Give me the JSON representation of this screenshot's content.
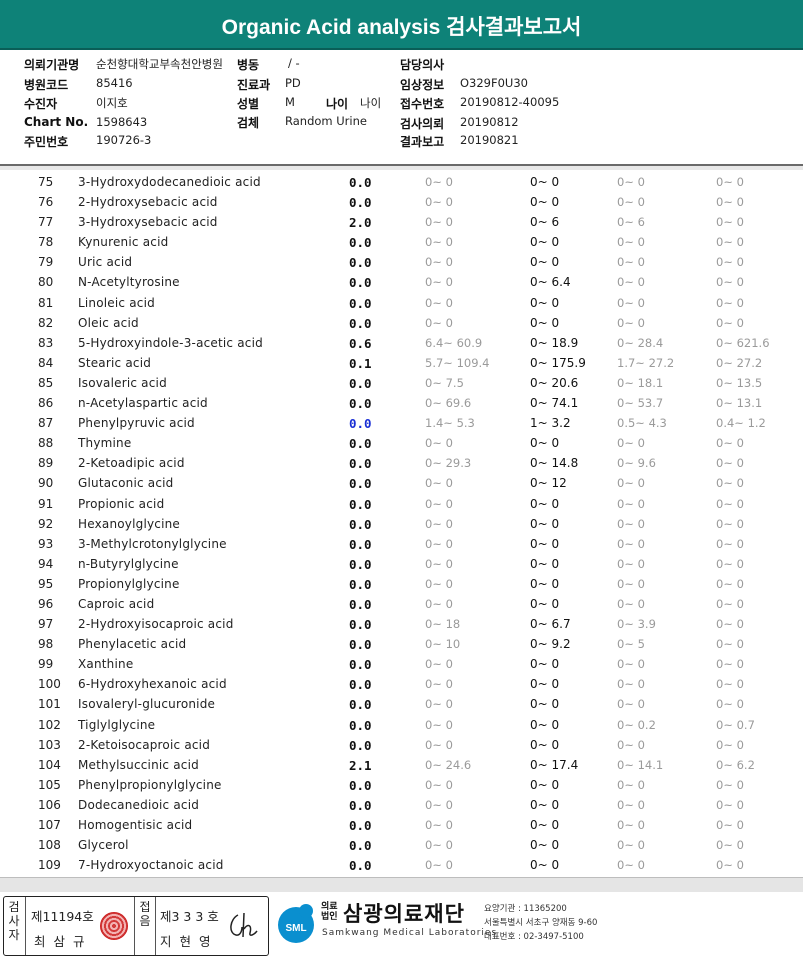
{
  "header": {
    "title": "Organic Acid analysis 검사결과보고서"
  },
  "info": {
    "requester_label": "의뢰기관명",
    "requester_value": "순천향대학교부속천안병원",
    "ward_label": "병동",
    "ward_value": "/ -",
    "doctor_label": "담당의사",
    "doctor_value": "",
    "hospital_code_label": "병원코드",
    "hospital_code_value": "85416",
    "dept_label": "진료과",
    "dept_value": "PD",
    "clinical_label": "임상정보",
    "clinical_value": "O329F0U30",
    "patient_label": "수진자",
    "patient_value": "이지호",
    "sex_label": "성별",
    "sex_value": "M",
    "age_label": "나이",
    "age_value": "나이",
    "receipt_label": "접수번호",
    "receipt_value": "20190812-40095",
    "chart_label": "Chart No.",
    "chart_value": "1598643",
    "specimen_label": "검체",
    "specimen_value": "Random Urine",
    "test_date_label": "검사의뢰",
    "test_date_value": "20190812",
    "id_label": "주민번호",
    "id_value": "190726-3",
    "report_label": "결과보고",
    "report_value": "20190821"
  },
  "rows": [
    {
      "no": "75",
      "name": "3-Hydroxydodecanedioic acid",
      "result": "0.0",
      "r1": "0~ 0",
      "r2": "0~ 0",
      "r3": "0~ 0",
      "r4": "0~ 0"
    },
    {
      "no": "76",
      "name": "2-Hydroxysebacic acid",
      "result": "0.0",
      "r1": "0~ 0",
      "r2": "0~ 0",
      "r3": "0~ 0",
      "r4": "0~ 0"
    },
    {
      "no": "77",
      "name": "3-Hydroxysebacic acid",
      "result": "2.0",
      "r1": "0~ 0",
      "r2": "0~ 6",
      "r3": "0~ 6",
      "r4": "0~ 0"
    },
    {
      "no": "78",
      "name": "Kynurenic acid",
      "result": "0.0",
      "r1": "0~ 0",
      "r2": "0~ 0",
      "r3": "0~ 0",
      "r4": "0~ 0"
    },
    {
      "no": "79",
      "name": "Uric acid",
      "result": "0.0",
      "r1": "0~ 0",
      "r2": "0~ 0",
      "r3": "0~ 0",
      "r4": "0~ 0"
    },
    {
      "no": "80",
      "name": "N-Acetyltyrosine",
      "result": "0.0",
      "r1": "0~ 0",
      "r2": "0~ 6.4",
      "r3": "0~ 0",
      "r4": "0~ 0"
    },
    {
      "no": "81",
      "name": "Linoleic acid",
      "result": "0.0",
      "r1": "0~ 0",
      "r2": "0~ 0",
      "r3": "0~ 0",
      "r4": "0~ 0"
    },
    {
      "no": "82",
      "name": "Oleic acid",
      "result": "0.0",
      "r1": "0~ 0",
      "r2": "0~ 0",
      "r3": "0~ 0",
      "r4": "0~ 0"
    },
    {
      "no": "83",
      "name": "5-Hydroxyindole-3-acetic acid",
      "result": "0.6",
      "r1": "6.4~ 60.9",
      "r2": "0~ 18.9",
      "r3": "0~ 28.4",
      "r4": "0~ 621.6"
    },
    {
      "no": "84",
      "name": "Stearic acid",
      "result": "0.1",
      "r1": "5.7~ 109.4",
      "r2": "0~ 175.9",
      "r3": "1.7~ 27.2",
      "r4": "0~ 27.2"
    },
    {
      "no": "85",
      "name": "Isovaleric acid",
      "result": "0.0",
      "r1": "0~ 7.5",
      "r2": "0~ 20.6",
      "r3": "0~ 18.1",
      "r4": "0~ 13.5"
    },
    {
      "no": "86",
      "name": "n-Acetylaspartic acid",
      "result": "0.0",
      "r1": "0~ 69.6",
      "r2": "0~ 74.1",
      "r3": "0~ 53.7",
      "r4": "0~ 13.1"
    },
    {
      "no": "87",
      "name": "Phenylpyruvic acid",
      "result": "0.0",
      "low": true,
      "r1": "1.4~ 5.3",
      "r2": "1~ 3.2",
      "r3": "0.5~ 4.3",
      "r4": "0.4~ 1.2"
    },
    {
      "no": "88",
      "name": "Thymine",
      "result": "0.0",
      "r1": "0~ 0",
      "r2": "0~ 0",
      "r3": "0~ 0",
      "r4": "0~ 0"
    },
    {
      "no": "89",
      "name": "2-Ketoadipic acid",
      "result": "0.0",
      "r1": "0~ 29.3",
      "r2": "0~ 14.8",
      "r3": "0~ 9.6",
      "r4": "0~ 0"
    },
    {
      "no": "90",
      "name": "Glutaconic acid",
      "result": "0.0",
      "r1": "0~ 0",
      "r2": "0~ 12",
      "r3": "0~ 0",
      "r4": "0~ 0"
    },
    {
      "no": "91",
      "name": "Propionic acid",
      "result": "0.0",
      "r1": "0~ 0",
      "r2": "0~ 0",
      "r3": "0~ 0",
      "r4": "0~ 0"
    },
    {
      "no": "92",
      "name": "Hexanoylglycine",
      "result": "0.0",
      "r1": "0~ 0",
      "r2": "0~ 0",
      "r3": "0~ 0",
      "r4": "0~ 0"
    },
    {
      "no": "93",
      "name": "3-Methylcrotonylglycine",
      "result": "0.0",
      "r1": "0~ 0",
      "r2": "0~ 0",
      "r3": "0~ 0",
      "r4": "0~ 0"
    },
    {
      "no": "94",
      "name": "n-Butyrylglycine",
      "result": "0.0",
      "r1": "0~ 0",
      "r2": "0~ 0",
      "r3": "0~ 0",
      "r4": "0~ 0"
    },
    {
      "no": "95",
      "name": "Propionylglycine",
      "result": "0.0",
      "r1": "0~ 0",
      "r2": "0~ 0",
      "r3": "0~ 0",
      "r4": "0~ 0"
    },
    {
      "no": "96",
      "name": "Caproic acid",
      "result": "0.0",
      "r1": "0~ 0",
      "r2": "0~ 0",
      "r3": "0~ 0",
      "r4": "0~ 0"
    },
    {
      "no": "97",
      "name": "2-Hydroxyisocaproic acid",
      "result": "0.0",
      "r1": "0~ 18",
      "r2": "0~ 6.7",
      "r3": "0~ 3.9",
      "r4": "0~ 0"
    },
    {
      "no": "98",
      "name": "Phenylacetic acid",
      "result": "0.0",
      "r1": "0~ 10",
      "r2": "0~ 9.2",
      "r3": "0~ 5",
      "r4": "0~ 0"
    },
    {
      "no": "99",
      "name": "Xanthine",
      "result": "0.0",
      "r1": "0~ 0",
      "r2": "0~ 0",
      "r3": "0~ 0",
      "r4": "0~ 0"
    },
    {
      "no": "100",
      "name": "6-Hydroxyhexanoic acid",
      "result": "0.0",
      "r1": "0~ 0",
      "r2": "0~ 0",
      "r3": "0~ 0",
      "r4": "0~ 0"
    },
    {
      "no": "101",
      "name": "Isovaleryl-glucuronide",
      "result": "0.0",
      "r1": "0~ 0",
      "r2": "0~ 0",
      "r3": "0~ 0",
      "r4": "0~ 0"
    },
    {
      "no": "102",
      "name": "Tiglylglycine",
      "result": "0.0",
      "r1": "0~ 0",
      "r2": "0~ 0",
      "r3": "0~ 0.2",
      "r4": "0~ 0.7"
    },
    {
      "no": "103",
      "name": "2-Ketoisocaproic acid",
      "result": "0.0",
      "r1": "0~ 0",
      "r2": "0~ 0",
      "r3": "0~ 0",
      "r4": "0~ 0"
    },
    {
      "no": "104",
      "name": "Methylsuccinic acid",
      "result": "2.1",
      "r1": "0~ 24.6",
      "r2": "0~ 17.4",
      "r3": "0~ 14.1",
      "r4": "0~ 6.2"
    },
    {
      "no": "105",
      "name": "Phenylpropionylglycine",
      "result": "0.0",
      "r1": "0~ 0",
      "r2": "0~ 0",
      "r3": "0~ 0",
      "r4": "0~ 0"
    },
    {
      "no": "106",
      "name": "Dodecanedioic acid",
      "result": "0.0",
      "r1": "0~ 0",
      "r2": "0~ 0",
      "r3": "0~ 0",
      "r4": "0~ 0"
    },
    {
      "no": "107",
      "name": "Homogentisic acid",
      "result": "0.0",
      "r1": "0~ 0",
      "r2": "0~ 0",
      "r3": "0~ 0",
      "r4": "0~ 0"
    },
    {
      "no": "108",
      "name": "Glycerol",
      "result": "0.0",
      "r1": "0~ 0",
      "r2": "0~ 0",
      "r3": "0~ 0",
      "r4": "0~ 0"
    },
    {
      "no": "109",
      "name": "7-Hydroxyoctanoic acid",
      "result": "0.0",
      "r1": "0~ 0",
      "r2": "0~ 0",
      "r3": "0~ 0",
      "r4": "0~ 0"
    }
  ],
  "footer": {
    "tester_label": "검사자",
    "tester_no": "제11194호",
    "tester_name": "최 삼 규",
    "reviewer_label": "접음",
    "reviewer_no": "제3 3 3 호",
    "reviewer_name": "지 현 영",
    "org_small": "의료법인",
    "org_name": "삼광의료재단",
    "org_en": "Samkwang Medical Laboratories",
    "logo_text": "SML",
    "addr1": "요양기관 : 11365200",
    "addr2": "서울특별시 서초구 양재동 9-60",
    "addr3": "대표번호 : 02-3497-5100",
    "seal_color": "#d23a3a"
  }
}
